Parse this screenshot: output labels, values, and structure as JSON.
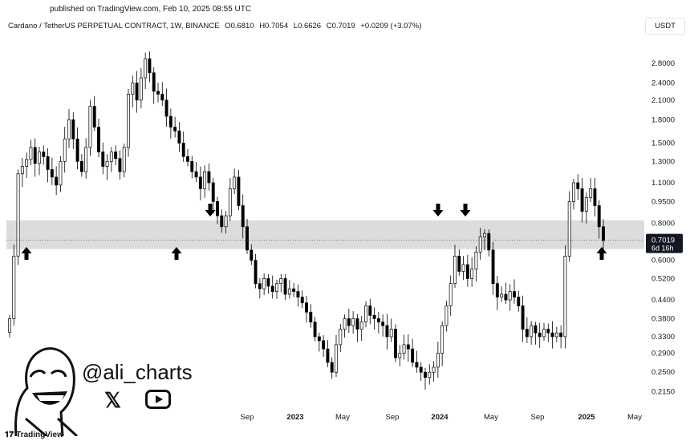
{
  "header": {
    "published": "published on TradingView.com, Feb 10, 2025 08:55 UTC",
    "symbol": "Cardano / TetherUS PERPETUAL CONTRACT, 1W, BINANCE",
    "open": "O0.6810",
    "high": "H0.7054",
    "low": "L0.6626",
    "close": "C0.7019",
    "change": "+0.0209 (+3.07%)",
    "currency": "USDT"
  },
  "price_badge": {
    "price": "0.7019",
    "countdown": "6d 16h"
  },
  "watermark": {
    "handle": "@ali_charts",
    "x_icon": "x-logo-icon",
    "youtube_icon": "youtube-icon"
  },
  "footer": {
    "brand": "TradingView"
  },
  "colors": {
    "band": "#dcdcdc",
    "candle": "#000000",
    "badge": "#131722"
  },
  "chart_data": {
    "type": "candlestick",
    "symbol": "ADAUSDT",
    "timeframe": "1W",
    "scale": "log",
    "ylim": [
      0.19,
      3.4
    ],
    "yticks": [
      2.8,
      2.4,
      2.1,
      1.8,
      1.5,
      1.3,
      1.1,
      0.95,
      0.8,
      0.7019,
      0.6,
      0.52,
      0.44,
      0.38,
      0.33,
      0.29,
      0.25,
      0.215
    ],
    "ytick_labels": [
      "2.8000",
      "2.4000",
      "2.1000",
      "1.8000",
      "1.5000",
      "1.3000",
      "1.1000",
      "0.9500",
      "0.8000",
      "0.7019",
      "0.6000",
      "0.5200",
      "0.4400",
      "0.3800",
      "0.3300",
      "0.2900",
      "0.2500",
      "0.2150"
    ],
    "xticks": [
      {
        "label": "Sep",
        "bold": false
      },
      {
        "label": "2023",
        "bold": true
      },
      {
        "label": "May",
        "bold": false
      },
      {
        "label": "Sep",
        "bold": false
      },
      {
        "label": "2024",
        "bold": true
      },
      {
        "label": "May",
        "bold": false
      },
      {
        "label": "Sep",
        "bold": false
      },
      {
        "label": "2025",
        "bold": true
      },
      {
        "label": "May",
        "bold": false
      }
    ],
    "support_zone": [
      0.655,
      0.82
    ],
    "last_price": 0.7019,
    "closes": [
      0.38,
      0.62,
      1.18,
      1.25,
      1.32,
      1.45,
      1.28,
      1.4,
      1.35,
      1.22,
      1.15,
      1.08,
      1.3,
      1.55,
      1.8,
      1.55,
      1.3,
      1.2,
      1.45,
      2.0,
      1.7,
      1.4,
      1.25,
      1.3,
      1.4,
      1.33,
      1.2,
      1.45,
      2.2,
      2.4,
      2.1,
      2.5,
      2.9,
      2.6,
      2.25,
      2.2,
      2.1,
      1.85,
      1.7,
      1.65,
      1.5,
      1.35,
      1.3,
      1.2,
      1.15,
      1.05,
      1.2,
      1.1,
      0.95,
      0.85,
      0.78,
      0.85,
      1.05,
      1.15,
      0.92,
      0.78,
      0.65,
      0.6,
      0.5,
      0.48,
      0.52,
      0.49,
      0.47,
      0.5,
      0.52,
      0.46,
      0.48,
      0.47,
      0.45,
      0.43,
      0.4,
      0.37,
      0.33,
      0.32,
      0.3,
      0.27,
      0.25,
      0.31,
      0.35,
      0.38,
      0.36,
      0.38,
      0.35,
      0.37,
      0.42,
      0.39,
      0.38,
      0.37,
      0.36,
      0.33,
      0.35,
      0.28,
      0.29,
      0.31,
      0.3,
      0.27,
      0.26,
      0.25,
      0.24,
      0.25,
      0.26,
      0.29,
      0.36,
      0.42,
      0.5,
      0.62,
      0.55,
      0.58,
      0.52,
      0.56,
      0.64,
      0.72,
      0.74,
      0.65,
      0.5,
      0.45,
      0.46,
      0.44,
      0.47,
      0.45,
      0.42,
      0.35,
      0.33,
      0.36,
      0.34,
      0.33,
      0.35,
      0.34,
      0.33,
      0.34,
      0.33,
      0.62,
      0.95,
      1.1,
      1.05,
      0.88,
      0.98,
      1.05,
      0.92,
      0.78,
      0.7
    ]
  }
}
